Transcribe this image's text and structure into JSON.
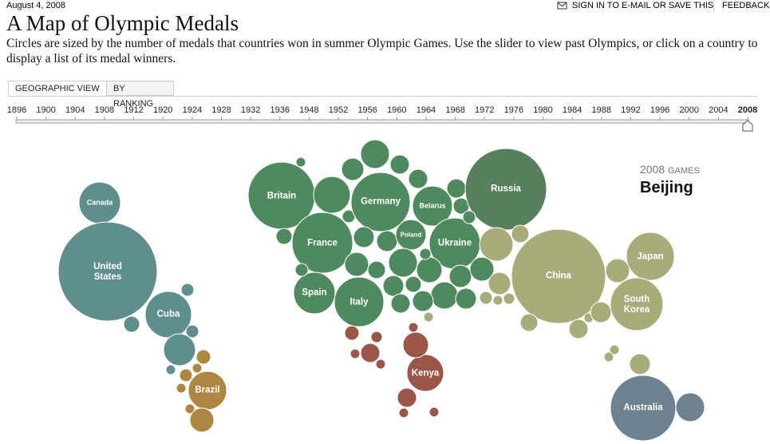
{
  "header": {
    "date": "August 4, 2008",
    "sign_in": "SIGN IN TO E-MAIL OR SAVE THIS",
    "feedback": "FEEDBACK"
  },
  "title": "A Map of Olympic Medals",
  "description": "Circles are sized by the number of medals that countries won in summer Olympic Games. Use the slider to view past Olympics, or click on a country to display a list of its medal winners.",
  "tabs": [
    "GEOGRAPHIC VIEW",
    "BY RANKING"
  ],
  "timeline": {
    "years": [
      1896,
      1900,
      1904,
      1908,
      1912,
      1920,
      1924,
      1928,
      1932,
      1936,
      1948,
      1952,
      1956,
      1960,
      1964,
      1968,
      1972,
      1976,
      1980,
      1984,
      1988,
      1992,
      1996,
      2000,
      2004,
      2008
    ]
  },
  "games": {
    "year": "2008",
    "label": "GAMES",
    "city": "Beijing"
  },
  "countries": [
    "Canada",
    "United States",
    "Cuba",
    "Brazil",
    "Britain",
    "Germany",
    "Belarus",
    "Russia",
    "France",
    "Poland",
    "Ukraine",
    "Spain",
    "Italy",
    "China",
    "Japan",
    "South Korea",
    "Kenya",
    "Australia"
  ]
}
